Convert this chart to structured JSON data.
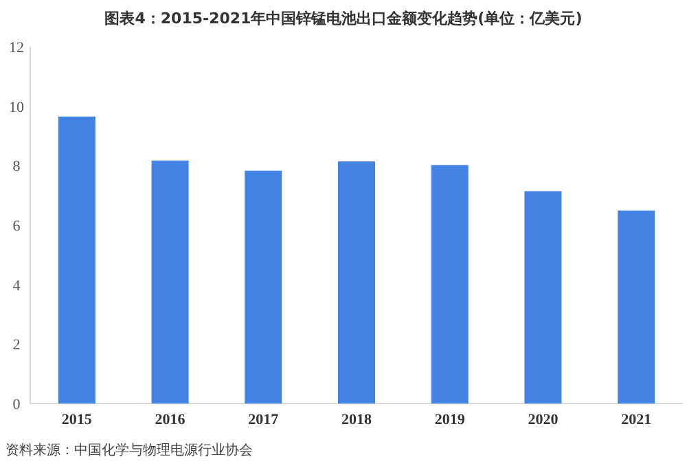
{
  "chart_data": {
    "type": "bar",
    "title": "图表4：2015-2021年中国锌锰电池出口金额变化趋势(单位：亿美元)",
    "categories": [
      "2015",
      "2016",
      "2017",
      "2018",
      "2019",
      "2020",
      "2021"
    ],
    "values": [
      9.65,
      8.17,
      7.83,
      8.14,
      8.02,
      7.14,
      6.49
    ],
    "color": "#4283e4",
    "ylim": [
      0,
      12
    ],
    "yticks": [
      0,
      2,
      4,
      6,
      8,
      10,
      12
    ],
    "grid": false,
    "annotations": [
      "资料来源：中国化学与物理电源行业协会"
    ]
  }
}
